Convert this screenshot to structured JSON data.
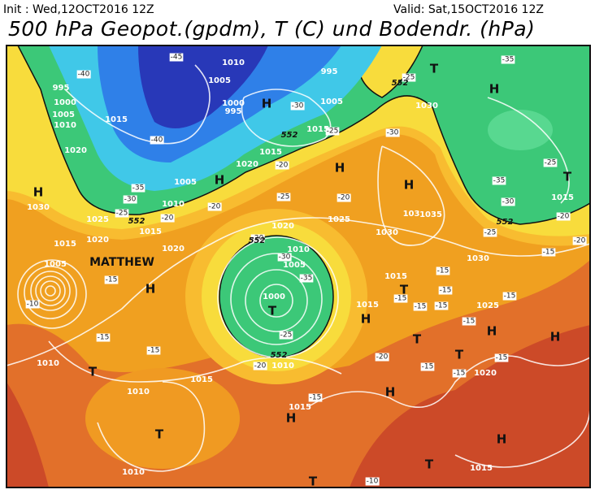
{
  "header": {
    "init": "Init : Wed,12OCT2016 12Z",
    "valid": "Valid: Sat,15OCT2016 12Z",
    "title": "500 hPa Geopot.(gpdm), T (C) und Bodendr. (hPa)"
  },
  "storm_name": "MATTHEW",
  "pressure_centers": [
    "H",
    "H",
    "H",
    "H",
    "H",
    "H",
    "T",
    "T",
    "H",
    "T",
    "T",
    "T",
    "H",
    "H",
    "H",
    "T",
    "T",
    "H",
    "H",
    "T",
    "H",
    "T",
    "T"
  ],
  "isobar_labels": [
    "995",
    "1000",
    "1005",
    "1010",
    "1015",
    "1020",
    "1010",
    "1005",
    "1000",
    "995",
    "995",
    "1005",
    "1015",
    "1030",
    "1020",
    "1015",
    "1005",
    "1010",
    "1030",
    "1025",
    "1015",
    "1020",
    "1015",
    "1020",
    "1005",
    "1020",
    "1025",
    "1010",
    "1005",
    "1000",
    "1030",
    "103",
    "1035",
    "1015",
    "1015",
    "1025",
    "1030",
    "1015",
    "1010",
    "1010",
    "1010",
    "1015",
    "1015",
    "1020",
    "1015",
    "1010"
  ],
  "temperature_labels": [
    "-45",
    "-40",
    "-40",
    "-35",
    "-30",
    "-25",
    "-20",
    "-30",
    "-25",
    "-20",
    "-30",
    "-25",
    "-35",
    "-25",
    "-35",
    "-30",
    "-25",
    "-20",
    "-20",
    "-20",
    "-20",
    "-25",
    "-20",
    "-30",
    "-35",
    "-25",
    "-20",
    "-15",
    "-10",
    "-15",
    "-15",
    "-20",
    "-15",
    "-15",
    "-15",
    "-15",
    "-15",
    "-15",
    "-15",
    "-15",
    "-15",
    "-15",
    "-15",
    "-15",
    "-10"
  ],
  "height_labels": [
    "552",
    "552",
    "552",
    "552",
    "552",
    "552"
  ]
}
